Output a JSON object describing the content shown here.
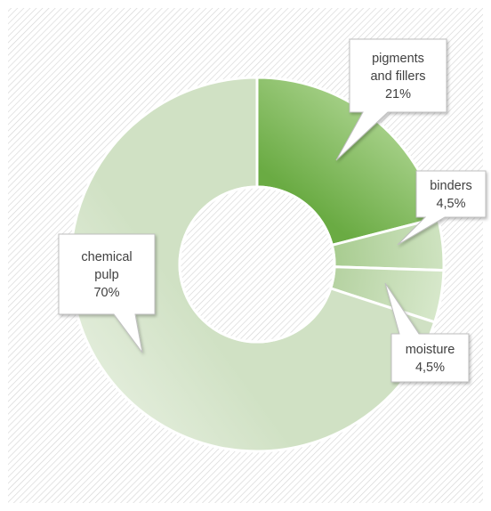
{
  "chart_data": {
    "type": "pie",
    "variant": "doughnut",
    "title": "",
    "series": [
      {
        "values": [
          21,
          4.5,
          4.5,
          70
        ]
      }
    ],
    "categories": [
      "pigments and fillers",
      "binders",
      "moisture",
      "chemical pulp"
    ],
    "slices": [
      {
        "label_lines": [
          "pigments",
          "and fillers"
        ],
        "value_text": "21%",
        "value": 21,
        "color_light": "#a4cf86",
        "color_dark": "#6aab43"
      },
      {
        "label_lines": [
          "binders"
        ],
        "value_text": "4,5%",
        "value": 4.5,
        "color_light": "#cfe3c1",
        "color_dark": "#a8cc90"
      },
      {
        "label_lines": [
          "moisture"
        ],
        "value_text": "4,5%",
        "value": 4.5,
        "color_light": "#d7e8cb",
        "color_dark": "#b5d2a1"
      },
      {
        "label_lines": [
          "chemical",
          "pulp"
        ],
        "value_text": "70%",
        "value": 70,
        "color_light": "#e1ecd9",
        "color_dark": "#d0e1c4"
      }
    ],
    "legend": "none",
    "background": "diagonal-hatch"
  }
}
